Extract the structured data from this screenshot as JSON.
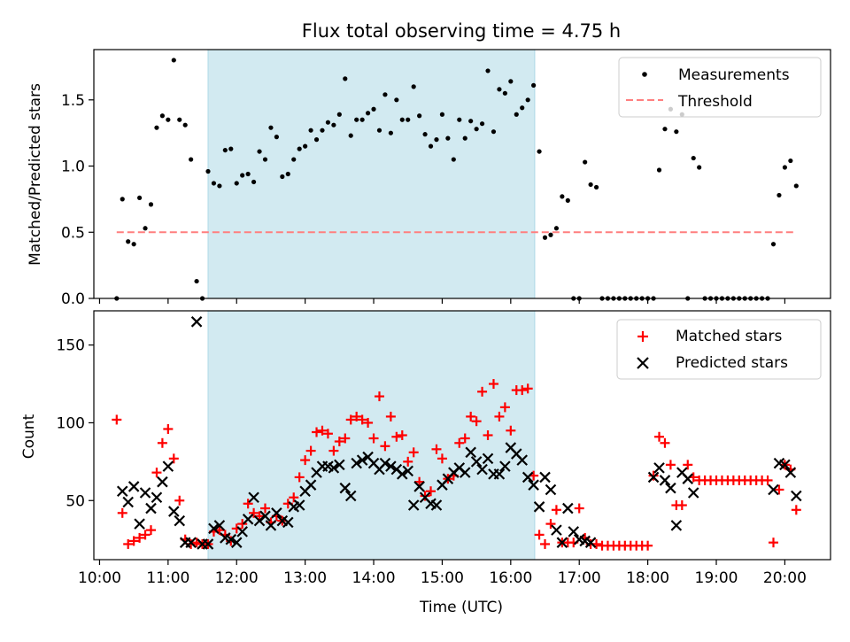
{
  "figure": {
    "title": "Flux total observing time = 4.75 h",
    "shaded_interval": [
      "11:35",
      "16:21"
    ],
    "colors": {
      "shade": "#add8e6",
      "measurements": "#000000",
      "threshold": "#ff7f7f",
      "matched": "#ff0000",
      "predicted": "#000000"
    }
  },
  "chart_data": [
    {
      "type": "scatter",
      "title": "Flux total observing time = 4.75 h",
      "xlabel": "",
      "ylabel": "Matched/Predicted stars",
      "ylim": [
        0,
        1.88
      ],
      "yticks": [
        0.0,
        0.5,
        1.0,
        1.5
      ],
      "ytick_labels": [
        "0.0",
        "0.5",
        "1.0",
        "1.5"
      ],
      "legend": "top-right",
      "legend_entries": [
        "Measurements",
        "Threshold"
      ],
      "threshold": {
        "name": "Threshold",
        "value": 0.5,
        "x_range": [
          "10:15",
          "20:10"
        ],
        "style": "dashed"
      },
      "series": [
        {
          "name": "Measurements",
          "marker": "dot",
          "x": [
            "10:15",
            "10:20",
            "10:25",
            "10:30",
            "10:35",
            "10:40",
            "10:45",
            "10:50",
            "10:55",
            "11:00",
            "11:05",
            "11:10",
            "11:15",
            "11:20",
            "11:25",
            "11:30",
            "11:35",
            "11:40",
            "11:45",
            "11:50",
            "11:55",
            "12:00",
            "12:05",
            "12:10",
            "12:15",
            "12:20",
            "12:25",
            "12:30",
            "12:35",
            "12:40",
            "12:45",
            "12:50",
            "12:55",
            "13:00",
            "13:05",
            "13:10",
            "13:15",
            "13:20",
            "13:25",
            "13:30",
            "13:35",
            "13:40",
            "13:45",
            "13:50",
            "13:55",
            "14:00",
            "14:05",
            "14:10",
            "14:15",
            "14:20",
            "14:25",
            "14:30",
            "14:35",
            "14:40",
            "14:45",
            "14:50",
            "14:55",
            "15:00",
            "15:05",
            "15:10",
            "15:15",
            "15:20",
            "15:25",
            "15:30",
            "15:35",
            "15:40",
            "15:45",
            "15:50",
            "15:55",
            "16:00",
            "16:05",
            "16:10",
            "16:15",
            "16:20",
            "16:25",
            "16:30",
            "16:35",
            "16:40",
            "16:45",
            "16:50",
            "16:55",
            "17:00",
            "17:05",
            "17:10",
            "17:15",
            "17:20",
            "17:25",
            "17:30",
            "17:35",
            "17:40",
            "17:45",
            "17:50",
            "17:55",
            "18:00",
            "18:05",
            "18:10",
            "18:15",
            "18:20",
            "18:25",
            "18:30",
            "18:35",
            "18:40",
            "18:45",
            "18:50",
            "18:55",
            "19:00",
            "19:05",
            "19:10",
            "19:15",
            "19:20",
            "19:25",
            "19:30",
            "19:35",
            "19:40",
            "19:45",
            "19:50",
            "19:55",
            "20:00",
            "20:05",
            "20:10"
          ],
          "y": [
            0.0,
            0.75,
            0.43,
            0.41,
            0.76,
            0.53,
            0.71,
            1.29,
            1.38,
            1.35,
            1.8,
            1.35,
            1.31,
            1.05,
            0.13,
            0.0,
            0.96,
            0.87,
            0.85,
            1.12,
            1.13,
            0.87,
            0.93,
            0.94,
            0.88,
            1.11,
            1.05,
            1.29,
            1.22,
            0.92,
            0.94,
            1.05,
            1.13,
            1.15,
            1.27,
            1.2,
            1.27,
            1.33,
            1.31,
            1.39,
            1.66,
            1.23,
            1.35,
            1.35,
            1.4,
            1.43,
            1.27,
            1.54,
            1.25,
            1.5,
            1.35,
            1.35,
            1.6,
            1.38,
            1.24,
            1.15,
            1.2,
            1.39,
            1.21,
            1.05,
            1.35,
            1.21,
            1.34,
            1.28,
            1.32,
            1.72,
            1.26,
            1.58,
            1.55,
            1.64,
            1.39,
            1.44,
            1.5,
            1.61,
            1.11,
            0.46,
            0.48,
            0.53,
            0.77,
            0.74,
            0.0,
            0.0,
            1.03,
            0.86,
            0.84,
            0.0,
            0.0,
            0.0,
            0.0,
            0.0,
            0.0,
            0.0,
            0.0,
            0.0,
            0.0,
            0.97,
            1.28,
            1.43,
            1.26,
            1.39,
            0.0,
            1.06,
            0.99,
            0.0,
            0.0,
            0.0,
            0.0,
            0.0,
            0.0,
            0.0,
            0.0,
            0.0,
            0.0,
            0.0,
            0.0,
            0.41,
            0.78,
            0.99,
            1.04,
            0.85
          ]
        }
      ]
    },
    {
      "type": "scatter",
      "xlabel": "Time (UTC)",
      "ylabel": "Count",
      "xlim": [
        "09:55",
        "20:40"
      ],
      "xticks": [
        "10:00",
        "11:00",
        "12:00",
        "13:00",
        "14:00",
        "15:00",
        "16:00",
        "17:00",
        "18:00",
        "19:00",
        "20:00"
      ],
      "ylim": [
        12,
        172
      ],
      "yticks": [
        50,
        100,
        150
      ],
      "ytick_labels": [
        "50",
        "100",
        "150"
      ],
      "legend": "top-right",
      "legend_entries": [
        "Matched stars",
        "Predicted stars"
      ],
      "series": [
        {
          "name": "Matched stars",
          "marker": "plus",
          "x": [
            "10:15",
            "10:20",
            "10:25",
            "10:30",
            "10:35",
            "10:40",
            "10:45",
            "10:50",
            "10:55",
            "11:00",
            "11:05",
            "11:10",
            "11:15",
            "11:20",
            "11:25",
            "11:30",
            "11:35",
            "11:40",
            "11:45",
            "11:50",
            "11:55",
            "12:00",
            "12:05",
            "12:10",
            "12:15",
            "12:20",
            "12:25",
            "12:30",
            "12:35",
            "12:40",
            "12:45",
            "12:50",
            "12:55",
            "13:00",
            "13:05",
            "13:10",
            "13:15",
            "13:20",
            "13:25",
            "13:30",
            "13:35",
            "13:40",
            "13:45",
            "13:50",
            "13:55",
            "14:00",
            "14:05",
            "14:10",
            "14:15",
            "14:20",
            "14:25",
            "14:30",
            "14:35",
            "14:40",
            "14:45",
            "14:50",
            "14:55",
            "15:00",
            "15:05",
            "15:10",
            "15:15",
            "15:20",
            "15:25",
            "15:30",
            "15:35",
            "15:40",
            "15:45",
            "15:50",
            "15:55",
            "16:00",
            "16:05",
            "16:10",
            "16:15",
            "16:20",
            "16:25",
            "16:30",
            "16:35",
            "16:40",
            "16:45",
            "16:50",
            "16:55",
            "17:00",
            "17:05",
            "17:10",
            "17:15",
            "17:20",
            "17:25",
            "17:30",
            "17:35",
            "17:40",
            "17:45",
            "17:50",
            "17:55",
            "18:00",
            "18:05",
            "18:10",
            "18:15",
            "18:20",
            "18:25",
            "18:30",
            "18:35",
            "18:40",
            "18:45",
            "18:50",
            "18:55",
            "19:00",
            "19:05",
            "19:10",
            "19:15",
            "19:20",
            "19:25",
            "19:30",
            "19:35",
            "19:40",
            "19:45",
            "19:50",
            "19:55",
            "20:00",
            "20:05",
            "20:10"
          ],
          "y": [
            102,
            42,
            22,
            24,
            26,
            28,
            31,
            68,
            87,
            96,
            77,
            50,
            25,
            22,
            23,
            22,
            22,
            30,
            31,
            28,
            24,
            32,
            35,
            48,
            42,
            40,
            45,
            36,
            40,
            37,
            48,
            52,
            65,
            76,
            82,
            94,
            95,
            93,
            82,
            88,
            90,
            102,
            104,
            102,
            100,
            90,
            117,
            85,
            104,
            91,
            92,
            75,
            81,
            62,
            53,
            56,
            83,
            77,
            64,
            66,
            87,
            90,
            104,
            101,
            120,
            92,
            125,
            104,
            110,
            95,
            121,
            121,
            122,
            66,
            28,
            22,
            35,
            44,
            23,
            23,
            23,
            45,
            26,
            22,
            22,
            21,
            21,
            21,
            21,
            21,
            21,
            21,
            21,
            21,
            66,
            91,
            87,
            73,
            47,
            47,
            73,
            65,
            63,
            63,
            63,
            63,
            63,
            63,
            63,
            63,
            63,
            63,
            63,
            63,
            63,
            23,
            57,
            73,
            70,
            44
          ]
        },
        {
          "name": "Predicted stars",
          "marker": "x",
          "x": [
            "10:20",
            "10:25",
            "10:30",
            "10:35",
            "10:40",
            "10:45",
            "10:50",
            "10:55",
            "11:00",
            "11:05",
            "11:10",
            "11:15",
            "11:20",
            "11:25",
            "11:30",
            "11:35",
            "11:40",
            "11:45",
            "11:50",
            "11:55",
            "12:00",
            "12:05",
            "12:10",
            "12:15",
            "12:20",
            "12:25",
            "12:30",
            "12:35",
            "12:40",
            "12:45",
            "12:50",
            "12:55",
            "13:00",
            "13:05",
            "13:10",
            "13:15",
            "13:20",
            "13:25",
            "13:30",
            "13:35",
            "13:40",
            "13:45",
            "13:50",
            "13:55",
            "14:00",
            "14:05",
            "14:10",
            "14:15",
            "14:20",
            "14:25",
            "14:30",
            "14:35",
            "14:40",
            "14:45",
            "14:50",
            "14:55",
            "15:00",
            "15:05",
            "15:10",
            "15:15",
            "15:20",
            "15:25",
            "15:30",
            "15:35",
            "15:40",
            "15:45",
            "15:50",
            "15:55",
            "16:00",
            "16:05",
            "16:10",
            "16:15",
            "16:20",
            "16:25",
            "16:30",
            "16:35",
            "16:40",
            "16:45",
            "16:50",
            "16:55",
            "17:00",
            "17:05",
            "17:10",
            "18:05",
            "18:10",
            "18:15",
            "18:20",
            "18:25",
            "18:30",
            "18:35",
            "18:40",
            "19:50",
            "19:55",
            "20:00",
            "20:05",
            "20:10"
          ],
          "y": [
            56,
            49,
            59,
            35,
            55,
            45,
            52,
            62,
            72,
            43,
            37,
            23,
            23,
            165,
            22,
            22,
            32,
            34,
            26,
            25,
            23,
            30,
            38,
            52,
            37,
            40,
            34,
            42,
            37,
            36,
            46,
            47,
            56,
            60,
            68,
            72,
            72,
            71,
            73,
            58,
            53,
            74,
            76,
            78,
            74,
            70,
            74,
            72,
            70,
            67,
            69,
            47,
            59,
            52,
            48,
            47,
            60,
            64,
            68,
            71,
            68,
            81,
            75,
            70,
            77,
            67,
            67,
            72,
            84,
            80,
            76,
            65,
            60,
            46,
            65,
            57,
            31,
            23,
            45,
            30,
            25,
            24,
            23,
            65,
            71,
            63,
            58,
            34,
            68,
            64,
            55,
            57,
            74,
            73,
            68,
            53
          ]
        }
      ]
    }
  ]
}
